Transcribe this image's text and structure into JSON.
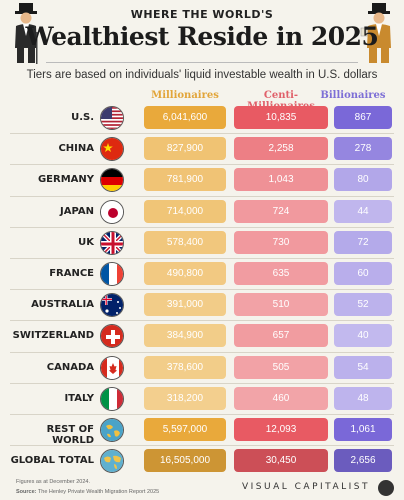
{
  "header": {
    "subtitle": "WHERE THE WORLD'S",
    "title": "Wealthiest Reside in 2025",
    "tagline": "Tiers are based on individuals' liquid investable wealth in U.S. dollars"
  },
  "footer": {
    "note": "Figures as at December 2024.",
    "source_label": "Source:",
    "source_text": "The Henley Private Wealth Migration Report 2025",
    "brand": "VISUAL CAPITALIST"
  },
  "colors": {
    "millionaires": "#e9a93b",
    "centi": "#e85a63",
    "billionaires": "#7a68d8"
  },
  "chart_data": {
    "type": "table",
    "columns": [
      "Millionaires",
      "Centi-Millionaires",
      "Billionaires"
    ],
    "rows": [
      {
        "label": "U.S.",
        "icon": "us-flag-icon",
        "values": [
          "6,041,600",
          "10,835",
          "867"
        ]
      },
      {
        "label": "CHINA",
        "icon": "china-flag-icon",
        "values": [
          "827,900",
          "2,258",
          "278"
        ]
      },
      {
        "label": "GERMANY",
        "icon": "germany-flag-icon",
        "values": [
          "781,900",
          "1,043",
          "80"
        ]
      },
      {
        "label": "JAPAN",
        "icon": "japan-flag-icon",
        "values": [
          "714,000",
          "724",
          "44"
        ]
      },
      {
        "label": "UK",
        "icon": "uk-flag-icon",
        "values": [
          "578,400",
          "730",
          "72"
        ]
      },
      {
        "label": "FRANCE",
        "icon": "france-flag-icon",
        "values": [
          "490,800",
          "635",
          "60"
        ]
      },
      {
        "label": "AUSTRALIA",
        "icon": "australia-flag-icon",
        "values": [
          "391,000",
          "510",
          "52"
        ]
      },
      {
        "label": "SWITZERLAND",
        "icon": "switzerland-flag-icon",
        "values": [
          "384,900",
          "657",
          "40"
        ]
      },
      {
        "label": "CANADA",
        "icon": "canada-flag-icon",
        "values": [
          "378,600",
          "505",
          "54"
        ]
      },
      {
        "label": "ITALY",
        "icon": "italy-flag-icon",
        "values": [
          "318,200",
          "460",
          "48"
        ]
      },
      {
        "label": "REST OF WORLD",
        "icon": "globe-icon",
        "values": [
          "5,597,000",
          "12,093",
          "1,061"
        ]
      },
      {
        "label": "GLOBAL TOTAL",
        "icon": "world-map-icon",
        "values": [
          "16,505,000",
          "30,450",
          "2,656"
        ]
      }
    ]
  }
}
